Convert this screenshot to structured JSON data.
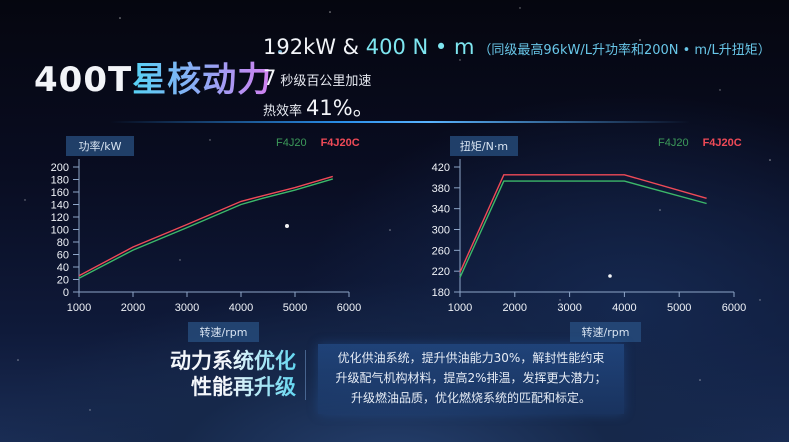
{
  "header": {
    "title_prefix": "400T",
    "title_main": "星核动力",
    "spec_power_torque_a": "192kW & ",
    "spec_power_torque_b": "400 N • m",
    "spec_note": "（同级最高96kW/L升功率和200N • m/L升扭矩）",
    "spec_accel_value": "7",
    "spec_accel_label": "秒级百公里加速",
    "spec_eff_label": "热效率",
    "spec_eff_value": "41%。"
  },
  "chart_data": [
    {
      "type": "line",
      "title": "",
      "xlabel": "转速/rpm",
      "ylabel": "功率/kW",
      "x": [
        1000,
        2000,
        3000,
        4000,
        4400,
        5000,
        5700
      ],
      "xticks": [
        1000,
        2000,
        3000,
        4000,
        5000,
        6000
      ],
      "yticks": [
        0,
        20,
        40,
        60,
        80,
        100,
        120,
        140,
        160,
        180,
        200
      ],
      "xlim": [
        1000,
        6000
      ],
      "ylim": [
        0,
        200
      ],
      "grid": false,
      "legend_position": "top-right",
      "series": [
        {
          "name": "F4J20",
          "color": "#3cb86a",
          "values": [
            22,
            67,
            103,
            140,
            150,
            163,
            181
          ]
        },
        {
          "name": "F4J20C",
          "color": "#ef4a57",
          "values": [
            26,
            72,
            108,
            145,
            154,
            167,
            185
          ]
        }
      ]
    },
    {
      "type": "line",
      "title": "",
      "xlabel": "转速/rpm",
      "ylabel": "扭矩/N·m",
      "x": [
        1000,
        1800,
        4000,
        5500
      ],
      "xticks": [
        1000,
        2000,
        3000,
        4000,
        5000,
        6000
      ],
      "yticks": [
        180,
        220,
        260,
        300,
        340,
        380,
        420
      ],
      "xlim": [
        1000,
        6000
      ],
      "ylim": [
        180,
        420
      ],
      "grid": false,
      "legend_position": "top-right",
      "series": [
        {
          "name": "F4J20",
          "color": "#3cb86a",
          "values": [
            208,
            393,
            393,
            350
          ]
        },
        {
          "name": "F4J20C",
          "color": "#ef4a57",
          "values": [
            218,
            405,
            405,
            360
          ]
        }
      ]
    }
  ],
  "bottom": {
    "heading_line1": "动力系统优化",
    "heading_line2": "性能再升级",
    "desc_line1": "优化供油系统，提升供油能力30%，解封性能约束",
    "desc_line2": "升级配气机构材料，提高2%排温，发挥更大潜力；",
    "desc_line3": "升级燃油品质，优化燃烧系统的匹配和标定。"
  }
}
